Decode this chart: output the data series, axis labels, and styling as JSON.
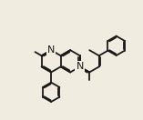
{
  "bg_color": "#f0ede0",
  "bond_color": "#1a1a1a",
  "atom_color": "#1a1a1a",
  "linewidth": 1.3,
  "fontsize": 7.5,
  "font_family": "Arial"
}
